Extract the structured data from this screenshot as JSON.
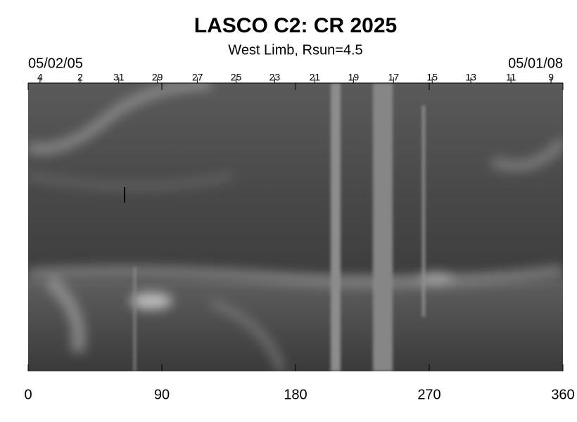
{
  "chart_data": {
    "type": "image",
    "title": "LASCO C2: CR 2025",
    "subtitle": "West Limb, Rsun=4.5",
    "xlim": [
      0,
      360
    ],
    "xticks": [
      0,
      90,
      180,
      270,
      360
    ],
    "top_start_label": "05/02/05",
    "top_end_label": "05/01/08",
    "top_ticks": [
      {
        "value": 8,
        "label": "4"
      },
      {
        "value": 35,
        "label": "2"
      },
      {
        "value": 61,
        "label": "31"
      },
      {
        "value": 87,
        "label": "29"
      },
      {
        "value": 114,
        "label": "27"
      },
      {
        "value": 140,
        "label": "25"
      },
      {
        "value": 166,
        "label": "23"
      },
      {
        "value": 193,
        "label": "21"
      },
      {
        "value": 219,
        "label": "19"
      },
      {
        "value": 246,
        "label": "17"
      },
      {
        "value": 272,
        "label": "15"
      },
      {
        "value": 298,
        "label": "13"
      },
      {
        "value": 325,
        "label": "11"
      },
      {
        "value": 352,
        "label": "9"
      }
    ]
  }
}
